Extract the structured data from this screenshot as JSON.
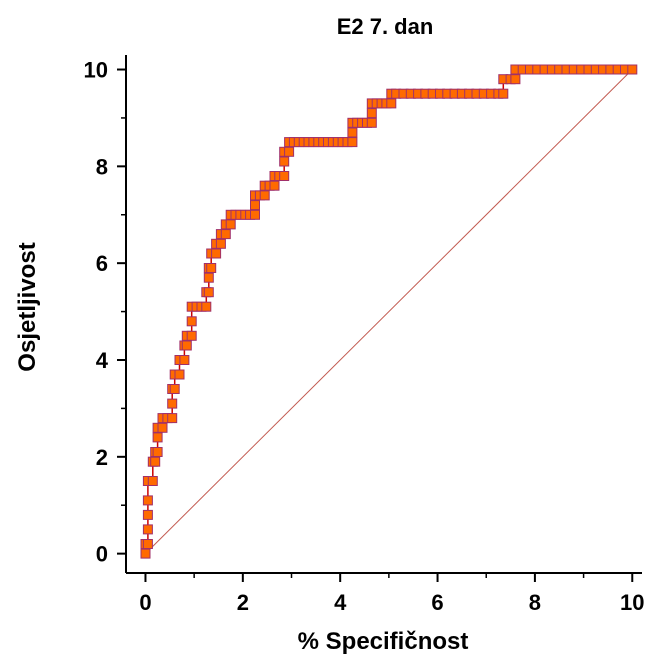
{
  "chart_data": {
    "type": "line",
    "title": "E2 7. dan",
    "xlabel": "% Specifičnost",
    "ylabel": "Osjetljivost",
    "xlim": [
      -0.4,
      10.2
    ],
    "ylim": [
      -0.4,
      10.3
    ],
    "x_ticks": [
      "0",
      "2",
      "4",
      "6",
      "8",
      "10"
    ],
    "y_ticks": [
      "0",
      "2",
      "4",
      "6",
      "8",
      "10"
    ],
    "grid": false,
    "colors": {
      "roc_line": "#cc0000",
      "marker_fill": "#ff6a00",
      "marker_edge": "#a0306a",
      "diagonal": "#c25a50"
    },
    "series": [
      {
        "marker": "square",
        "points": [
          [
            0.0,
            0.0
          ],
          [
            0.0,
            0.2
          ],
          [
            0.05,
            0.2
          ],
          [
            0.05,
            0.5
          ],
          [
            0.05,
            0.8
          ],
          [
            0.05,
            1.1
          ],
          [
            0.05,
            1.5
          ],
          [
            0.15,
            1.5
          ],
          [
            0.15,
            1.9
          ],
          [
            0.2,
            1.9
          ],
          [
            0.2,
            2.1
          ],
          [
            0.25,
            2.1
          ],
          [
            0.25,
            2.4
          ],
          [
            0.25,
            2.6
          ],
          [
            0.35,
            2.6
          ],
          [
            0.35,
            2.8
          ],
          [
            0.45,
            2.8
          ],
          [
            0.55,
            2.8
          ],
          [
            0.55,
            3.1
          ],
          [
            0.55,
            3.4
          ],
          [
            0.6,
            3.4
          ],
          [
            0.6,
            3.7
          ],
          [
            0.7,
            3.7
          ],
          [
            0.7,
            4.0
          ],
          [
            0.8,
            4.0
          ],
          [
            0.8,
            4.3
          ],
          [
            0.85,
            4.3
          ],
          [
            0.85,
            4.5
          ],
          [
            0.95,
            4.5
          ],
          [
            0.95,
            4.8
          ],
          [
            0.95,
            5.1
          ],
          [
            1.05,
            5.1
          ],
          [
            1.15,
            5.1
          ],
          [
            1.25,
            5.1
          ],
          [
            1.25,
            5.4
          ],
          [
            1.3,
            5.4
          ],
          [
            1.3,
            5.7
          ],
          [
            1.3,
            5.9
          ],
          [
            1.35,
            5.9
          ],
          [
            1.35,
            6.2
          ],
          [
            1.45,
            6.2
          ],
          [
            1.45,
            6.4
          ],
          [
            1.55,
            6.4
          ],
          [
            1.55,
            6.6
          ],
          [
            1.65,
            6.6
          ],
          [
            1.65,
            6.8
          ],
          [
            1.75,
            6.8
          ],
          [
            1.75,
            7.0
          ],
          [
            1.85,
            7.0
          ],
          [
            1.95,
            7.0
          ],
          [
            2.05,
            7.0
          ],
          [
            2.15,
            7.0
          ],
          [
            2.25,
            7.0
          ],
          [
            2.25,
            7.2
          ],
          [
            2.25,
            7.4
          ],
          [
            2.35,
            7.4
          ],
          [
            2.45,
            7.4
          ],
          [
            2.45,
            7.6
          ],
          [
            2.55,
            7.6
          ],
          [
            2.65,
            7.6
          ],
          [
            2.65,
            7.8
          ],
          [
            2.75,
            7.8
          ],
          [
            2.85,
            7.8
          ],
          [
            2.85,
            8.1
          ],
          [
            2.85,
            8.3
          ],
          [
            2.95,
            8.3
          ],
          [
            2.95,
            8.5
          ],
          [
            3.05,
            8.5
          ],
          [
            3.15,
            8.5
          ],
          [
            3.25,
            8.5
          ],
          [
            3.35,
            8.5
          ],
          [
            3.45,
            8.5
          ],
          [
            3.55,
            8.5
          ],
          [
            3.65,
            8.5
          ],
          [
            3.75,
            8.5
          ],
          [
            3.85,
            8.5
          ],
          [
            3.95,
            8.5
          ],
          [
            4.05,
            8.5
          ],
          [
            4.15,
            8.5
          ],
          [
            4.25,
            8.5
          ],
          [
            4.25,
            8.7
          ],
          [
            4.25,
            8.9
          ],
          [
            4.35,
            8.9
          ],
          [
            4.45,
            8.9
          ],
          [
            4.55,
            8.9
          ],
          [
            4.65,
            8.9
          ],
          [
            4.65,
            9.1
          ],
          [
            4.65,
            9.3
          ],
          [
            4.75,
            9.3
          ],
          [
            4.85,
            9.3
          ],
          [
            4.95,
            9.3
          ],
          [
            5.05,
            9.3
          ],
          [
            5.05,
            9.5
          ],
          [
            5.15,
            9.5
          ],
          [
            5.3,
            9.5
          ],
          [
            5.45,
            9.5
          ],
          [
            5.6,
            9.5
          ],
          [
            5.75,
            9.5
          ],
          [
            5.9,
            9.5
          ],
          [
            6.05,
            9.5
          ],
          [
            6.2,
            9.5
          ],
          [
            6.35,
            9.5
          ],
          [
            6.5,
            9.5
          ],
          [
            6.65,
            9.5
          ],
          [
            6.8,
            9.5
          ],
          [
            6.95,
            9.5
          ],
          [
            7.1,
            9.5
          ],
          [
            7.25,
            9.5
          ],
          [
            7.35,
            9.5
          ],
          [
            7.35,
            9.8
          ],
          [
            7.5,
            9.8
          ],
          [
            7.6,
            9.8
          ],
          [
            7.6,
            10.0
          ],
          [
            7.75,
            10.0
          ],
          [
            7.9,
            10.0
          ],
          [
            8.05,
            10.0
          ],
          [
            8.2,
            10.0
          ],
          [
            8.35,
            10.0
          ],
          [
            8.5,
            10.0
          ],
          [
            8.65,
            10.0
          ],
          [
            8.8,
            10.0
          ],
          [
            8.95,
            10.0
          ],
          [
            9.1,
            10.0
          ],
          [
            9.25,
            10.0
          ],
          [
            9.4,
            10.0
          ],
          [
            9.55,
            10.0
          ],
          [
            9.7,
            10.0
          ],
          [
            9.85,
            10.0
          ],
          [
            10.0,
            10.0
          ]
        ]
      }
    ],
    "reference_line": [
      [
        0,
        0
      ],
      [
        10,
        10
      ]
    ]
  }
}
